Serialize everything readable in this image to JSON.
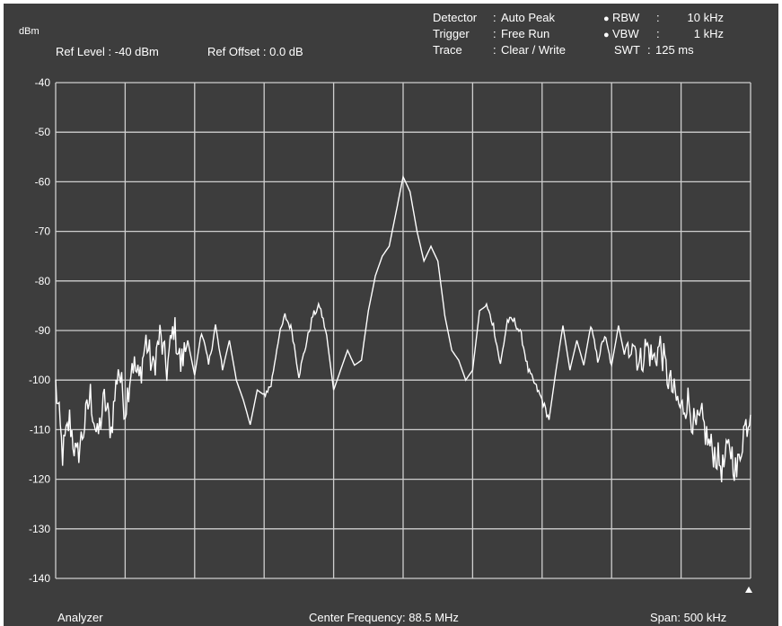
{
  "header": {
    "unit_label": "dBm",
    "ref_level": "Ref Level : -40 dBm",
    "ref_offset": "Ref Offset : 0.0 dB",
    "settings": [
      {
        "name": "Detector",
        "sep": ":",
        "value": "Auto Peak"
      },
      {
        "name": "Trigger",
        "sep": ":",
        "value": "Free Run"
      },
      {
        "name": "Trace",
        "sep": ":",
        "value": "Clear / Write"
      }
    ],
    "bandwidth": [
      {
        "bullet": "●",
        "name": "RBW",
        "sep": ":",
        "value": "10 kHz"
      },
      {
        "bullet": "●",
        "name": "VBW",
        "sep": ":",
        "value": "1 kHz"
      },
      {
        "bullet": "",
        "name": "SWT",
        "sep": ":",
        "value": "125 ms"
      }
    ]
  },
  "footer": {
    "mode": "Analyzer",
    "center": "Center Frequency:  88.5 MHz",
    "span": "Span:  500 kHz"
  },
  "colors": {
    "background": "#3d3d3d",
    "grid": "#cfcfcf",
    "trace": "#ffffff"
  },
  "chart_data": {
    "type": "line",
    "title": "",
    "xlabel": "",
    "ylabel": "dBm",
    "xlim": [
      -250,
      250
    ],
    "ylim": [
      -140,
      -40
    ],
    "yticks": [
      "-40",
      "-50",
      "-60",
      "-70",
      "-80",
      "-90",
      "-100",
      "-110",
      "-120",
      "-130",
      "-140"
    ],
    "x_divisions": 10,
    "grid": true,
    "series": [
      {
        "name": "",
        "x": [
          -250,
          -245,
          -240,
          -235,
          -230,
          -225,
          -220,
          -215,
          -210,
          -205,
          -200,
          -195,
          -190,
          -185,
          -180,
          -175,
          -170,
          -165,
          -160,
          -155,
          -150,
          -145,
          -140,
          -135,
          -130,
          -125,
          -120,
          -115,
          -110,
          -105,
          -100,
          -95,
          -90,
          -85,
          -80,
          -75,
          -70,
          -65,
          -60,
          -55,
          -50,
          -45,
          -40,
          -35,
          -30,
          -25,
          -20,
          -15,
          -10,
          -5,
          0,
          5,
          10,
          15,
          20,
          25,
          30,
          35,
          40,
          45,
          50,
          55,
          60,
          65,
          70,
          75,
          80,
          85,
          90,
          95,
          100,
          105,
          110,
          115,
          120,
          125,
          130,
          135,
          140,
          145,
          150,
          155,
          160,
          165,
          170,
          175,
          180,
          185,
          190,
          195,
          200,
          205,
          210,
          215,
          220,
          225,
          230,
          235,
          240,
          245,
          250
        ],
        "values": [
          -101,
          -115,
          -108,
          -116,
          -110,
          -103,
          -112,
          -104,
          -110,
          -97,
          -106,
          -96,
          -100,
          -92,
          -98,
          -91,
          -98,
          -89,
          -97,
          -92,
          -99,
          -90,
          -97,
          -89,
          -98,
          -92,
          -100,
          -104,
          -109,
          -102,
          -103,
          -101,
          -92,
          -87,
          -90,
          -99,
          -93,
          -87,
          -85,
          -91,
          -102,
          -98,
          -94,
          -97,
          -96,
          -86,
          -79,
          -75,
          -73,
          -66,
          -59,
          -62,
          -70,
          -76,
          -73,
          -76,
          -87,
          -94,
          -96,
          -100,
          -98,
          -86,
          -85,
          -89,
          -97,
          -88,
          -88,
          -91,
          -98,
          -101,
          -104,
          -108,
          -98,
          -89,
          -98,
          -92,
          -97,
          -89,
          -96,
          -91,
          -97,
          -89,
          -96,
          -91,
          -97,
          -93,
          -96,
          -93,
          -99,
          -103,
          -106,
          -104,
          -110,
          -108,
          -113,
          -115,
          -118,
          -113,
          -119,
          -110,
          -107
        ]
      }
    ]
  }
}
